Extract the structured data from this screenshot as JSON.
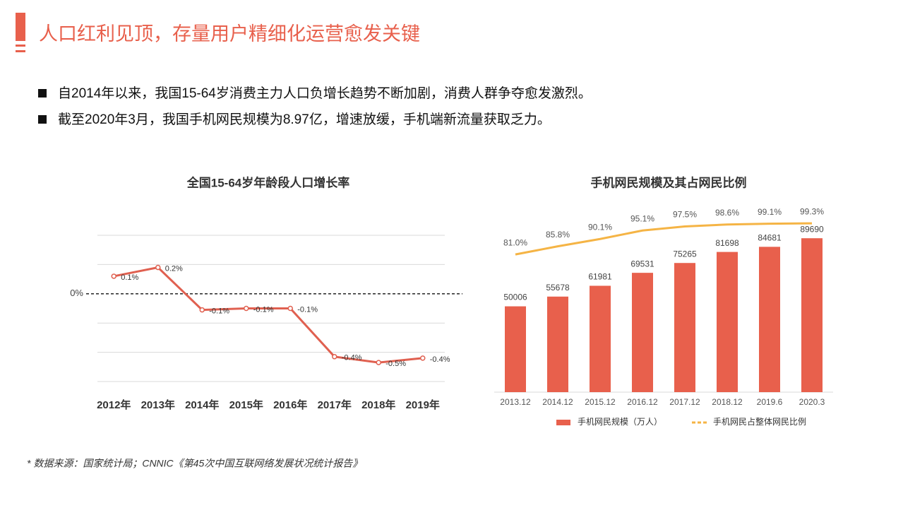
{
  "header": {
    "title": "人口红利见顶，存量用户精细化运营愈发关键"
  },
  "bullets": [
    "自2014年以来，我国15-64岁消费主力人口负增长趋势不断加剧，消费人群争夺愈发激烈。",
    "截至2020年3月，我国手机网民规模为8.97亿，增速放缓，手机端新流量获取乏力。"
  ],
  "source": "*  数据来源：国家统计局；CNNIC《第45次中国互联网络发展状况统计报告》",
  "chart_data": [
    {
      "type": "line",
      "title": "全国15-64岁年龄段人口增长率",
      "categories": [
        "2012年",
        "2013年",
        "2014年",
        "2015年",
        "2016年",
        "2017年",
        "2018年",
        "2019年"
      ],
      "values": [
        0.12,
        0.18,
        -0.11,
        -0.1,
        -0.1,
        -0.43,
        -0.47,
        -0.44
      ],
      "value_labels": [
        "0.1%",
        "0.2%",
        "-0.1%",
        "-0.1%",
        "-0.1%",
        "-0.4%",
        "-0.5%",
        "-0.4%"
      ],
      "color": "#e06050",
      "ylim": [
        -0.6,
        0.4
      ],
      "yticks": [
        {
          "value": 0,
          "label": "0%"
        }
      ],
      "grid_values": [
        0.4,
        0.2,
        -0.2,
        -0.4,
        -0.6
      ],
      "grid": true
    },
    {
      "type": "bar",
      "title": "手机网民规模及其占网民比例",
      "categories": [
        "2013.12",
        "2014.12",
        "2015.12",
        "2016.12",
        "2017.12",
        "2018.12",
        "2019.6",
        "2020.3"
      ],
      "series": [
        {
          "name": "手机网民规模（万人）",
          "type": "bar",
          "color": "#e8604c",
          "values": [
            50006,
            55678,
            61981,
            69531,
            75265,
            81698,
            84681,
            89690
          ]
        },
        {
          "name": "手机网民占整体网民比例",
          "type": "line",
          "axis": "y2",
          "color": "#f5b445",
          "values": [
            81.0,
            85.8,
            90.1,
            95.1,
            97.5,
            98.6,
            99.1,
            99.3
          ],
          "value_labels": [
            "81.0%",
            "85.8%",
            "90.1%",
            "95.1%",
            "97.5%",
            "98.6%",
            "99.1%",
            "99.3%"
          ]
        }
      ],
      "ylim": [
        0,
        105000
      ],
      "y2lim": [
        0,
        106
      ],
      "legend": "bottom"
    }
  ]
}
